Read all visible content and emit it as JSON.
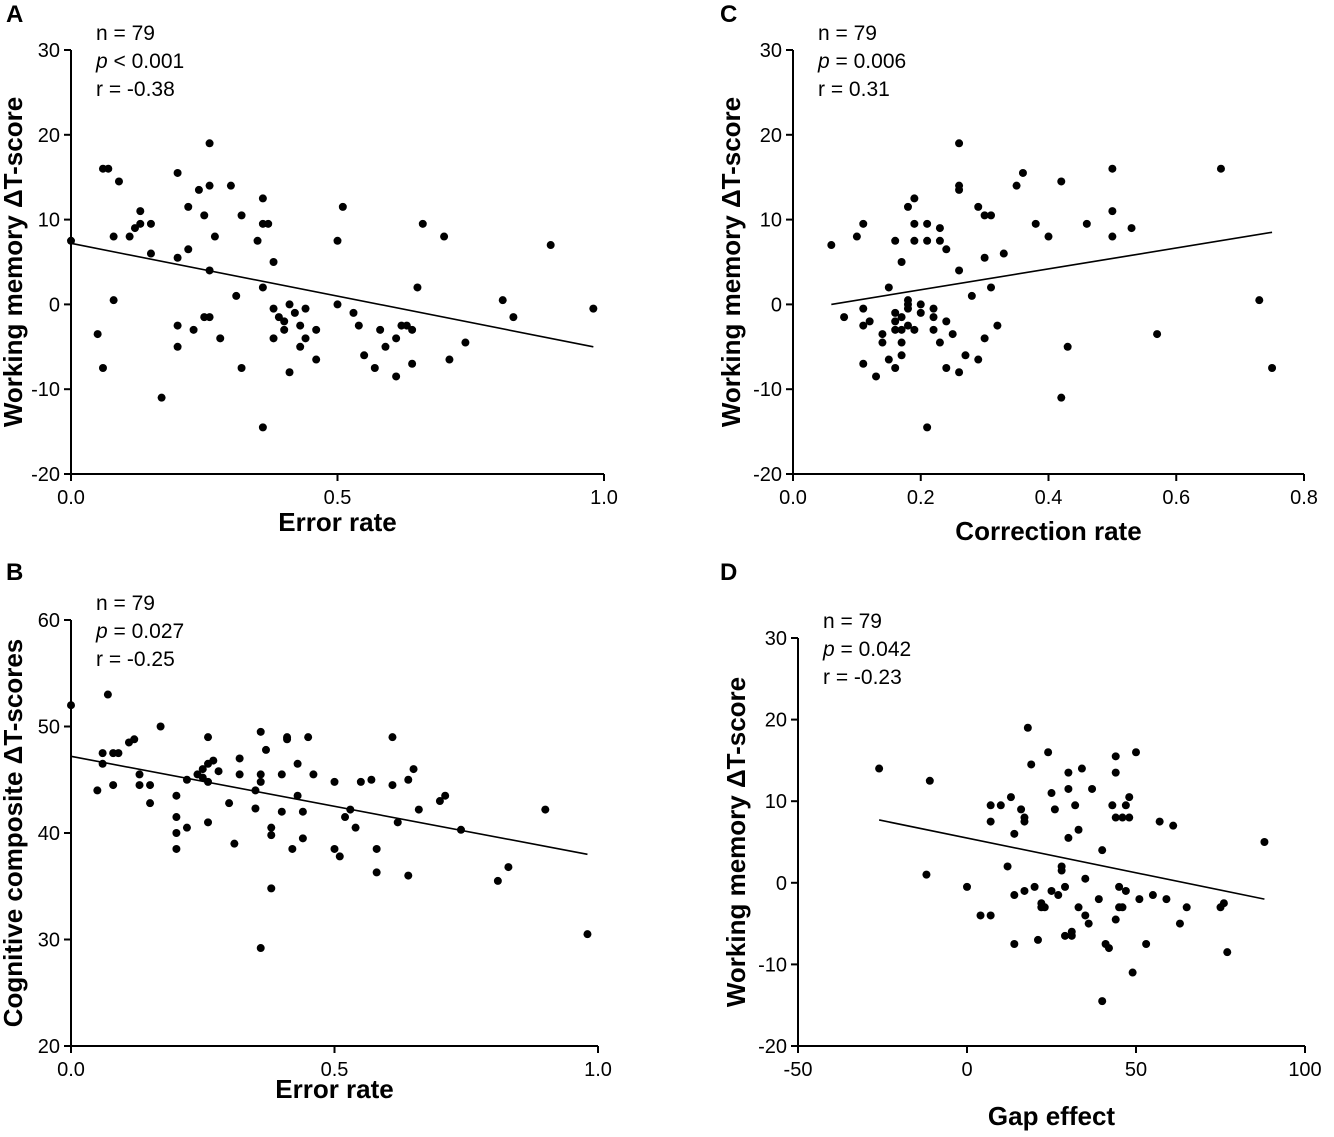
{
  "chart_data": [
    {
      "id": "A",
      "type": "scatter",
      "panel_label": "A",
      "xlabel": "Error rate",
      "ylabel": "Working memory ΔT-score",
      "xlim": [
        0,
        1
      ],
      "ylim": [
        -20,
        30
      ],
      "xticks": [
        0,
        0.5,
        1
      ],
      "xtick_labels": [
        "0.0",
        "0.5",
        "1.0"
      ],
      "yticks": [
        -20,
        -10,
        0,
        10,
        20,
        30
      ],
      "ytick_labels": [
        "-20",
        "-10",
        "0",
        "10",
        "20",
        "30"
      ],
      "stats": {
        "n": "n = 79",
        "p_symbol": "p",
        "p_value": " < 0.001",
        "r": "r = -0.38"
      },
      "fit_line": {
        "x": [
          0,
          0.98
        ],
        "y": [
          7.2,
          -5.0
        ]
      },
      "points": [
        [
          0.0,
          7.5
        ],
        [
          0.05,
          -3.5
        ],
        [
          0.06,
          -7.5
        ],
        [
          0.06,
          16
        ],
        [
          0.07,
          16
        ],
        [
          0.08,
          8
        ],
        [
          0.08,
          0.5
        ],
        [
          0.09,
          14.5
        ],
        [
          0.11,
          8
        ],
        [
          0.12,
          9
        ],
        [
          0.13,
          11
        ],
        [
          0.13,
          9.5
        ],
        [
          0.15,
          9.5
        ],
        [
          0.15,
          6
        ],
        [
          0.17,
          -11
        ],
        [
          0.2,
          15.5
        ],
        [
          0.2,
          5.5
        ],
        [
          0.2,
          -2.5
        ],
        [
          0.2,
          -5
        ],
        [
          0.22,
          6.5
        ],
        [
          0.22,
          11.5
        ],
        [
          0.23,
          -3
        ],
        [
          0.24,
          13.5
        ],
        [
          0.25,
          10.5
        ],
        [
          0.25,
          -1.5
        ],
        [
          0.26,
          19
        ],
        [
          0.26,
          14
        ],
        [
          0.26,
          4
        ],
        [
          0.26,
          -1.5
        ],
        [
          0.27,
          8
        ],
        [
          0.28,
          -4
        ],
        [
          0.3,
          14
        ],
        [
          0.31,
          1
        ],
        [
          0.32,
          10.5
        ],
        [
          0.32,
          -7.5
        ],
        [
          0.35,
          7.5
        ],
        [
          0.36,
          12.5
        ],
        [
          0.36,
          9.5
        ],
        [
          0.36,
          2
        ],
        [
          0.36,
          -14.5
        ],
        [
          0.37,
          9.5
        ],
        [
          0.38,
          5
        ],
        [
          0.38,
          -0.5
        ],
        [
          0.38,
          -4
        ],
        [
          0.39,
          -1.5
        ],
        [
          0.4,
          -3
        ],
        [
          0.4,
          -2
        ],
        [
          0.41,
          0
        ],
        [
          0.41,
          -8
        ],
        [
          0.42,
          -1
        ],
        [
          0.43,
          -2.5
        ],
        [
          0.43,
          -5
        ],
        [
          0.44,
          -0.5
        ],
        [
          0.44,
          -4
        ],
        [
          0.46,
          -3
        ],
        [
          0.46,
          -6.5
        ],
        [
          0.5,
          7.5
        ],
        [
          0.5,
          0
        ],
        [
          0.51,
          11.5
        ],
        [
          0.53,
          -1
        ],
        [
          0.54,
          -2.5
        ],
        [
          0.55,
          -6
        ],
        [
          0.57,
          -7.5
        ],
        [
          0.58,
          -3
        ],
        [
          0.59,
          -5
        ],
        [
          0.61,
          -4
        ],
        [
          0.61,
          -8.5
        ],
        [
          0.62,
          -2.5
        ],
        [
          0.63,
          -2.5
        ],
        [
          0.64,
          -7
        ],
        [
          0.64,
          -3
        ],
        [
          0.65,
          2
        ],
        [
          0.66,
          9.5
        ],
        [
          0.7,
          8
        ],
        [
          0.71,
          -6.5
        ],
        [
          0.74,
          -4.5
        ],
        [
          0.81,
          0.5
        ],
        [
          0.83,
          -1.5
        ],
        [
          0.9,
          7
        ],
        [
          0.98,
          -0.5
        ]
      ]
    },
    {
      "id": "B",
      "type": "scatter",
      "panel_label": "B",
      "xlabel": "Error rate",
      "ylabel": "Cognitive composite ΔT-scores",
      "xlim": [
        0,
        1
      ],
      "ylim": [
        20,
        60
      ],
      "xticks": [
        0,
        0.5,
        1
      ],
      "xtick_labels": [
        "0.0",
        "0.5",
        "1.0"
      ],
      "yticks": [
        20,
        30,
        40,
        50,
        60
      ],
      "ytick_labels": [
        "20",
        "30",
        "40",
        "50",
        "60"
      ],
      "stats": {
        "n": "n = 79",
        "p_symbol": "p",
        "p_value": " = 0.027",
        "r": "r = -0.25"
      },
      "fit_line": {
        "x": [
          0,
          0.98
        ],
        "y": [
          47.2,
          38.0
        ]
      },
      "points": [
        [
          0.0,
          52
        ],
        [
          0.05,
          44
        ],
        [
          0.06,
          47.5
        ],
        [
          0.06,
          46.5
        ],
        [
          0.07,
          53
        ],
        [
          0.08,
          44.5
        ],
        [
          0.08,
          47.5
        ],
        [
          0.09,
          47.5
        ],
        [
          0.11,
          48.5
        ],
        [
          0.12,
          48.8
        ],
        [
          0.13,
          45.5
        ],
        [
          0.13,
          44.5
        ],
        [
          0.15,
          42.8
        ],
        [
          0.15,
          44.5
        ],
        [
          0.17,
          50
        ],
        [
          0.2,
          43.5
        ],
        [
          0.2,
          41.5
        ],
        [
          0.2,
          40
        ],
        [
          0.2,
          38.5
        ],
        [
          0.22,
          40.5
        ],
        [
          0.22,
          45
        ],
        [
          0.24,
          45.5
        ],
        [
          0.25,
          46
        ],
        [
          0.25,
          45.2
        ],
        [
          0.26,
          49
        ],
        [
          0.26,
          46.5
        ],
        [
          0.26,
          44.8
        ],
        [
          0.26,
          41
        ],
        [
          0.27,
          46.8
        ],
        [
          0.28,
          45.8
        ],
        [
          0.3,
          42.8
        ],
        [
          0.31,
          39
        ],
        [
          0.32,
          47
        ],
        [
          0.32,
          45.5
        ],
        [
          0.35,
          44
        ],
        [
          0.36,
          49.5
        ],
        [
          0.36,
          45.5
        ],
        [
          0.36,
          44.8
        ],
        [
          0.36,
          29.2
        ],
        [
          0.37,
          47.8
        ],
        [
          0.38,
          40.5
        ],
        [
          0.38,
          34.8
        ],
        [
          0.38,
          39.8
        ],
        [
          0.4,
          42
        ],
        [
          0.4,
          45.5
        ],
        [
          0.41,
          49
        ],
        [
          0.41,
          48.8
        ],
        [
          0.42,
          38.5
        ],
        [
          0.43,
          43.5
        ],
        [
          0.43,
          46.5
        ],
        [
          0.44,
          39.5
        ],
        [
          0.45,
          49
        ],
        [
          0.46,
          45.5
        ],
        [
          0.5,
          44.8
        ],
        [
          0.5,
          38.5
        ],
        [
          0.51,
          37.8
        ],
        [
          0.53,
          42.2
        ],
        [
          0.54,
          40.5
        ],
        [
          0.55,
          44.8
        ],
        [
          0.57,
          45
        ],
        [
          0.58,
          36.3
        ],
        [
          0.61,
          49
        ],
        [
          0.61,
          44.5
        ],
        [
          0.62,
          41
        ],
        [
          0.64,
          45
        ],
        [
          0.64,
          36
        ],
        [
          0.65,
          46
        ],
        [
          0.66,
          42.2
        ],
        [
          0.7,
          43
        ],
        [
          0.71,
          43.5
        ],
        [
          0.74,
          40.3
        ],
        [
          0.81,
          35.5
        ],
        [
          0.83,
          36.8
        ],
        [
          0.9,
          42.2
        ],
        [
          0.98,
          30.5
        ],
        [
          0.44,
          42
        ],
        [
          0.35,
          42.3
        ],
        [
          0.52,
          41.5
        ],
        [
          0.58,
          38.5
        ]
      ]
    },
    {
      "id": "C",
      "type": "scatter",
      "panel_label": "C",
      "xlabel": "Correction rate",
      "ylabel": "Working memory ΔT-score",
      "xlim": [
        0,
        0.8
      ],
      "ylim": [
        -20,
        30
      ],
      "xticks": [
        0,
        0.2,
        0.4,
        0.6,
        0.8
      ],
      "xtick_labels": [
        "0.0",
        "0.2",
        "0.4",
        "0.6",
        "0.8"
      ],
      "yticks": [
        -20,
        -10,
        0,
        10,
        20,
        30
      ],
      "ytick_labels": [
        "-20",
        "-10",
        "0",
        "10",
        "20",
        "30"
      ],
      "stats": {
        "n": "n = 79",
        "p_symbol": "p",
        "p_value": " = 0.006",
        "r": "r = 0.31"
      },
      "fit_line": {
        "x": [
          0.06,
          0.75
        ],
        "y": [
          0,
          8.5
        ]
      },
      "points": [
        [
          0.06,
          7
        ],
        [
          0.08,
          -1.5
        ],
        [
          0.1,
          8
        ],
        [
          0.11,
          9.5
        ],
        [
          0.11,
          -0.5
        ],
        [
          0.11,
          -2.5
        ],
        [
          0.11,
          -7
        ],
        [
          0.12,
          -2
        ],
        [
          0.13,
          -8.5
        ],
        [
          0.14,
          -4.5
        ],
        [
          0.15,
          2
        ],
        [
          0.15,
          -6.5
        ],
        [
          0.16,
          7.5
        ],
        [
          0.16,
          -1
        ],
        [
          0.16,
          -2
        ],
        [
          0.16,
          -3
        ],
        [
          0.16,
          -7.5
        ],
        [
          0.17,
          5
        ],
        [
          0.17,
          -1.5
        ],
        [
          0.17,
          -3
        ],
        [
          0.17,
          -4.5
        ],
        [
          0.17,
          -6
        ],
        [
          0.18,
          11.5
        ],
        [
          0.18,
          0
        ],
        [
          0.18,
          0.5
        ],
        [
          0.18,
          -0.5
        ],
        [
          0.18,
          -2.5
        ],
        [
          0.19,
          12.5
        ],
        [
          0.19,
          9.5
        ],
        [
          0.19,
          7.5
        ],
        [
          0.19,
          -3
        ],
        [
          0.2,
          -1
        ],
        [
          0.21,
          -14.5
        ],
        [
          0.21,
          9.5
        ],
        [
          0.21,
          7.5
        ],
        [
          0.22,
          -0.5
        ],
        [
          0.22,
          -1.5
        ],
        [
          0.22,
          -3
        ],
        [
          0.23,
          9
        ],
        [
          0.23,
          7.5
        ],
        [
          0.23,
          -4.5
        ],
        [
          0.24,
          -2
        ],
        [
          0.24,
          -7.5
        ],
        [
          0.25,
          -3.5
        ],
        [
          0.26,
          19
        ],
        [
          0.26,
          14
        ],
        [
          0.26,
          13.5
        ],
        [
          0.26,
          4
        ],
        [
          0.26,
          -8
        ],
        [
          0.28,
          1
        ],
        [
          0.29,
          11.5
        ],
        [
          0.29,
          -6.5
        ],
        [
          0.3,
          10.5
        ],
        [
          0.3,
          5.5
        ],
        [
          0.3,
          -4
        ],
        [
          0.31,
          10.5
        ],
        [
          0.31,
          2
        ],
        [
          0.32,
          -2.5
        ],
        [
          0.33,
          6
        ],
        [
          0.35,
          14
        ],
        [
          0.36,
          15.5
        ],
        [
          0.38,
          9.5
        ],
        [
          0.4,
          8
        ],
        [
          0.42,
          14.5
        ],
        [
          0.42,
          -11
        ],
        [
          0.43,
          -5
        ],
        [
          0.46,
          9.5
        ],
        [
          0.5,
          16
        ],
        [
          0.5,
          11
        ],
        [
          0.5,
          8
        ],
        [
          0.53,
          9
        ],
        [
          0.57,
          -3.5
        ],
        [
          0.67,
          16
        ],
        [
          0.73,
          0.5
        ],
        [
          0.75,
          -7.5
        ],
        [
          0.2,
          0
        ],
        [
          0.24,
          6.5
        ],
        [
          0.14,
          -3.5
        ],
        [
          0.27,
          -6
        ]
      ]
    },
    {
      "id": "D",
      "type": "scatter",
      "panel_label": "D",
      "xlabel": "Gap effect",
      "ylabel": "Working memory ΔT-score",
      "xlim": [
        -50,
        100
      ],
      "ylim": [
        -20,
        30
      ],
      "xticks": [
        -50,
        0,
        50,
        100
      ],
      "xtick_labels": [
        "-50",
        "0",
        "50",
        "100"
      ],
      "yticks": [
        -20,
        -10,
        0,
        10,
        20,
        30
      ],
      "ytick_labels": [
        "-20",
        "-10",
        "0",
        "10",
        "20",
        "30"
      ],
      "stats": {
        "n": "n = 79",
        "p_symbol": "p",
        "p_value": " = 0.042",
        "r": "r = -0.23"
      },
      "fit_line": {
        "x": [
          -26,
          88
        ],
        "y": [
          7.7,
          -2.0
        ]
      },
      "points": [
        [
          -26,
          14
        ],
        [
          -12,
          1
        ],
        [
          -11,
          12.5
        ],
        [
          0,
          -0.5
        ],
        [
          4,
          -4
        ],
        [
          7,
          9.5
        ],
        [
          7,
          7.5
        ],
        [
          7,
          -4
        ],
        [
          10,
          9.5
        ],
        [
          12,
          2
        ],
        [
          13,
          10.5
        ],
        [
          14,
          6
        ],
        [
          14,
          -1.5
        ],
        [
          14,
          -7.5
        ],
        [
          17,
          -1
        ],
        [
          16,
          9
        ],
        [
          17,
          7.5
        ],
        [
          17,
          8
        ],
        [
          18,
          19
        ],
        [
          19,
          14.5
        ],
        [
          20,
          -0.5
        ],
        [
          21,
          -7
        ],
        [
          22,
          -3
        ],
        [
          22,
          -2.5
        ],
        [
          24,
          16
        ],
        [
          25,
          -1
        ],
        [
          25,
          11
        ],
        [
          26,
          9
        ],
        [
          27,
          -1.5
        ],
        [
          28,
          2
        ],
        [
          28,
          1.5
        ],
        [
          29,
          -6.5
        ],
        [
          29,
          -0.5
        ],
        [
          30,
          13.5
        ],
        [
          30,
          11.5
        ],
        [
          30,
          5.5
        ],
        [
          31,
          -6.5
        ],
        [
          31,
          -6
        ],
        [
          32,
          9.5
        ],
        [
          33,
          6.5
        ],
        [
          33,
          -3
        ],
        [
          34,
          14
        ],
        [
          35,
          0.5
        ],
        [
          35,
          -4
        ],
        [
          36,
          -5
        ],
        [
          37,
          11.5
        ],
        [
          39,
          -2
        ],
        [
          40,
          -14.5
        ],
        [
          40,
          4
        ],
        [
          41,
          -7.5
        ],
        [
          42,
          -8
        ],
        [
          43,
          9.5
        ],
        [
          44,
          15.5
        ],
        [
          44,
          13.5
        ],
        [
          44,
          8
        ],
        [
          44,
          -4.5
        ],
        [
          45,
          -0.5
        ],
        [
          45,
          -3
        ],
        [
          46,
          8
        ],
        [
          46,
          -3
        ],
        [
          47,
          -1
        ],
        [
          47,
          9.5
        ],
        [
          48,
          10.5
        ],
        [
          48,
          8
        ],
        [
          49,
          -11
        ],
        [
          50,
          16
        ],
        [
          51,
          -2
        ],
        [
          53,
          -7.5
        ],
        [
          55,
          -1.5
        ],
        [
          57,
          7.5
        ],
        [
          59,
          -2
        ],
        [
          61,
          7
        ],
        [
          63,
          -5
        ],
        [
          65,
          -3
        ],
        [
          75,
          -3
        ],
        [
          76,
          -2.5
        ],
        [
          77,
          -8.5
        ],
        [
          88,
          5
        ],
        [
          23,
          -3
        ]
      ]
    }
  ]
}
